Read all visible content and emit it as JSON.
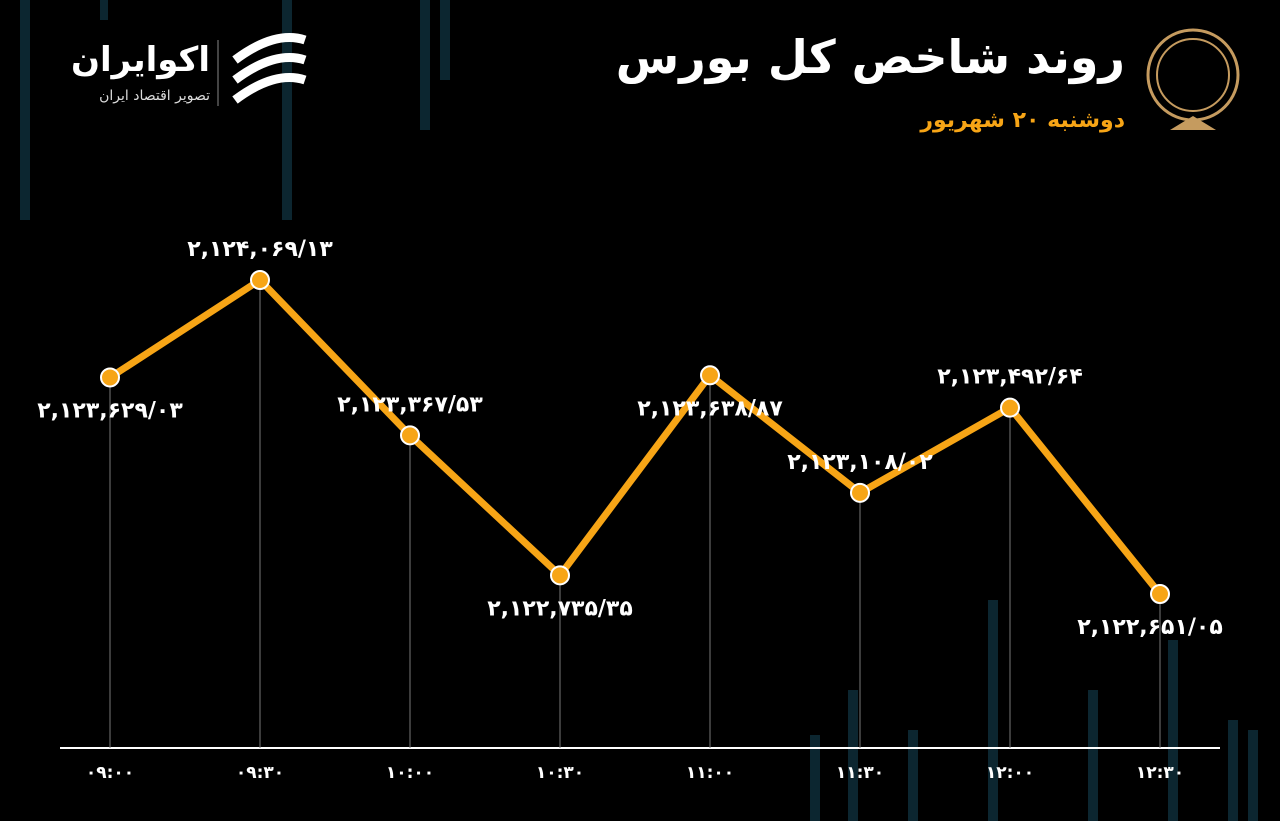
{
  "brand": {
    "name": "اکوایران",
    "tagline": "تصویر اقتصاد ایران"
  },
  "chart_data": {
    "type": "line",
    "title": "روند شاخص کل بورس",
    "subtitle": "دوشنبه ۲۰ شهریور",
    "categories": [
      "۰۹:۰۰",
      "۰۹:۳۰",
      "۱۰:۰۰",
      "۱۰:۳۰",
      "۱۱:۰۰",
      "۱۱:۳۰",
      "۱۲:۰۰",
      "۱۲:۳۰"
    ],
    "values": [
      2123629.03,
      2124069.13,
      2123367.53,
      2122735.35,
      2123638.87,
      2123108.02,
      2123492.64,
      2122651.05
    ],
    "value_labels": [
      "۲,۱۲۳,۶۲۹/۰۳",
      "۲,۱۲۴,۰۶۹/۱۳",
      "۲,۱۲۳,۳۶۷/۵۳",
      "۲,۱۲۲,۷۳۵/۳۵",
      "۲,۱۲۳,۶۳۸/۸۷",
      "۲,۱۲۳,۱۰۸/۰۲",
      "۲,۱۲۳,۴۹۲/۶۴",
      "۲,۱۲۲,۶۵۱/۰۵"
    ],
    "color": "#f7a516"
  }
}
